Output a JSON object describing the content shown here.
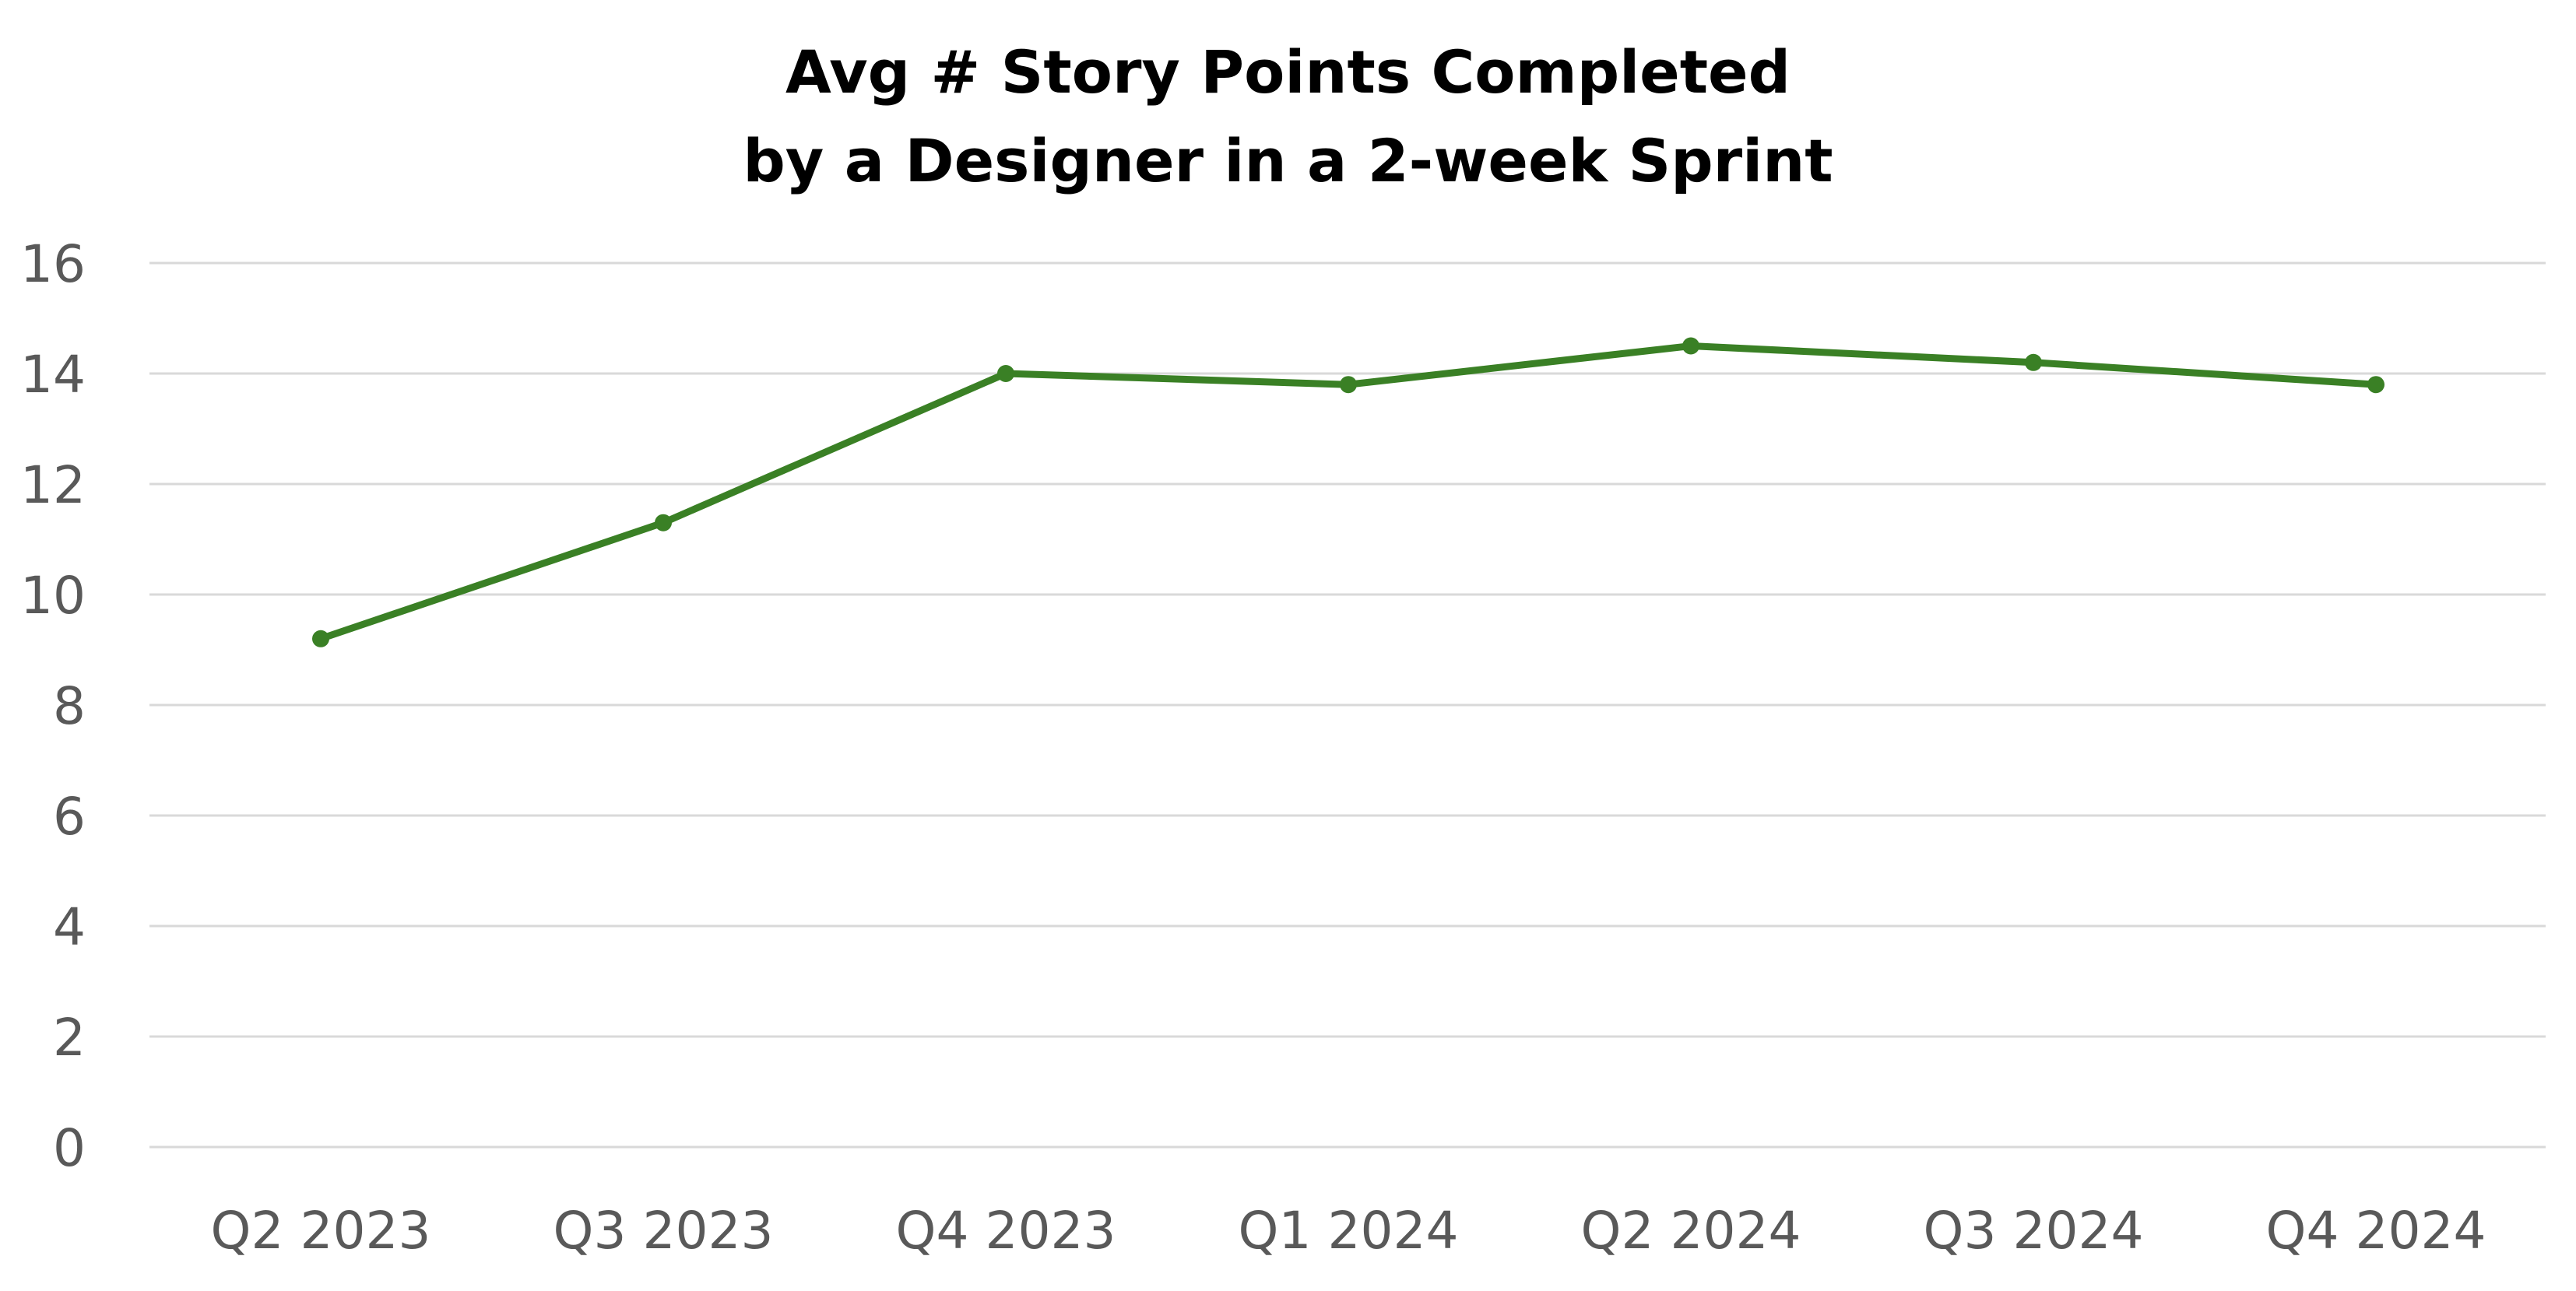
{
  "chart_data": {
    "type": "line",
    "title": [
      "Avg # Story Points Completed",
      "by a Designer in a 2-week Sprint"
    ],
    "xlabel": "",
    "ylabel": "",
    "categories": [
      "Q2 2023",
      "Q3 2023",
      "Q4 2023",
      "Q1 2024",
      "Q2 2024",
      "Q3 2024",
      "Q4 2024"
    ],
    "series": [
      {
        "values": [
          9.2,
          11.3,
          14.0,
          13.8,
          14.5,
          14.2,
          13.8
        ],
        "color": "#3a8025"
      }
    ],
    "ylim": [
      0,
      16
    ],
    "yticks": [
      0,
      2,
      4,
      6,
      8,
      10,
      12,
      14,
      16
    ],
    "grid": true,
    "legend": "none"
  }
}
